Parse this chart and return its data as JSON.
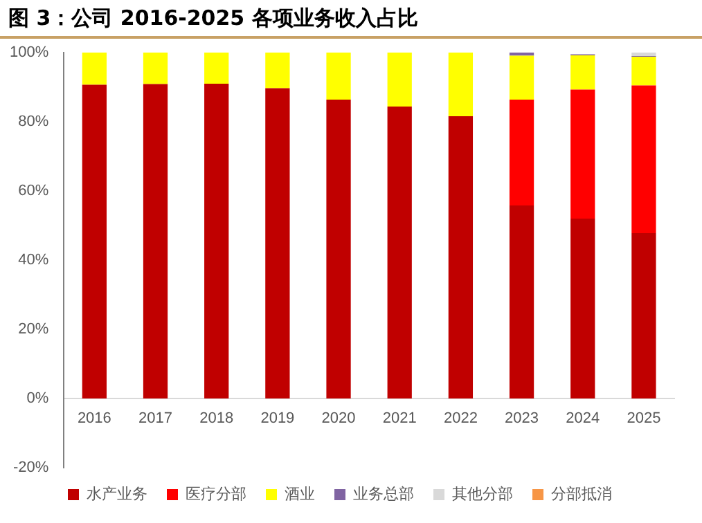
{
  "chart_data": {
    "type": "bar",
    "stacked": true,
    "title": "图 3：公司 2016-2025 各项业务收入占比",
    "categories": [
      "2016",
      "2017",
      "2018",
      "2019",
      "2020",
      "2021",
      "2022",
      "2023",
      "2024",
      "2025"
    ],
    "series": [
      {
        "name": "水产业务",
        "color": "#c00000",
        "values": [
          90.7,
          90.9,
          91.0,
          89.7,
          86.4,
          84.4,
          81.6,
          55.8,
          52.0,
          47.8
        ]
      },
      {
        "name": "医疗分部",
        "color": "#ff0000",
        "values": [
          null,
          null,
          null,
          null,
          null,
          null,
          null,
          30.6,
          37.3,
          42.7
        ]
      },
      {
        "name": "酒业",
        "color": "#ffff00",
        "values": [
          9.3,
          9.1,
          9.0,
          10.3,
          13.6,
          15.6,
          18.4,
          12.7,
          9.9,
          8.3
        ]
      },
      {
        "name": "业务总部",
        "color": "#8064a2",
        "values": [
          null,
          null,
          null,
          null,
          null,
          null,
          null,
          0.9,
          0.3,
          0.2
        ]
      },
      {
        "name": "其他分部",
        "color": "#d9d9d9",
        "values": [
          null,
          null,
          null,
          null,
          null,
          null,
          null,
          null,
          null,
          1.0
        ]
      },
      {
        "name": "分部抵消",
        "color": "#f79646",
        "values": [
          null,
          null,
          null,
          null,
          null,
          null,
          null,
          null,
          null,
          null
        ]
      }
    ],
    "ylim": [
      -20,
      100
    ],
    "yticks": [
      {
        "value": -20,
        "label": "-20%"
      },
      {
        "value": 0,
        "label": "0%"
      },
      {
        "value": 20,
        "label": "20%"
      },
      {
        "value": 40,
        "label": "40%"
      },
      {
        "value": 60,
        "label": "60%"
      },
      {
        "value": 80,
        "label": "80%"
      },
      {
        "value": 100,
        "label": "100%"
      }
    ],
    "grid": false,
    "legend": "bottom"
  }
}
